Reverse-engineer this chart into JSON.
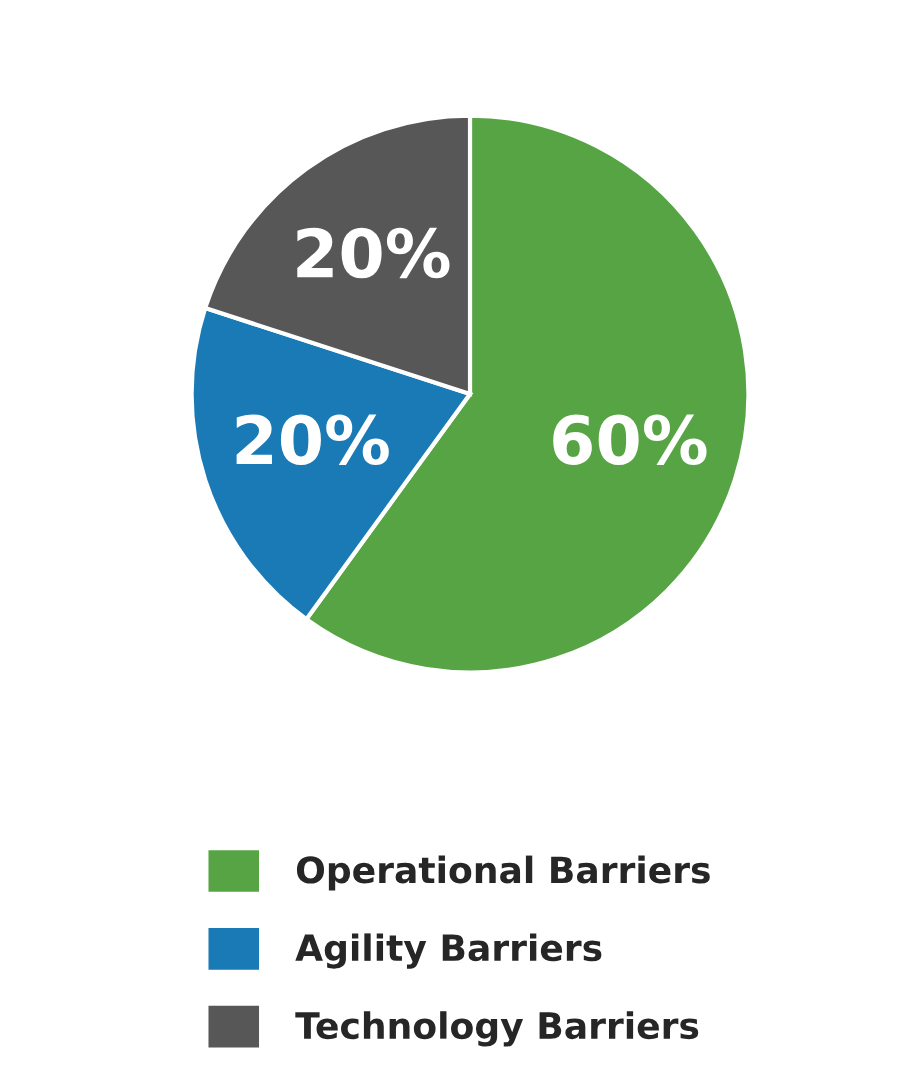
{
  "chart_data": {
    "type": "pie",
    "categories": [
      "Operational Barriers",
      "Agility Barriers",
      "Technology Barriers"
    ],
    "values": [
      60,
      20,
      20
    ],
    "colors": [
      "#56a444",
      "#1a7ab5",
      "#575757"
    ],
    "value_labels": [
      "60%",
      "20%",
      "20%"
    ],
    "legend": "bottom"
  }
}
